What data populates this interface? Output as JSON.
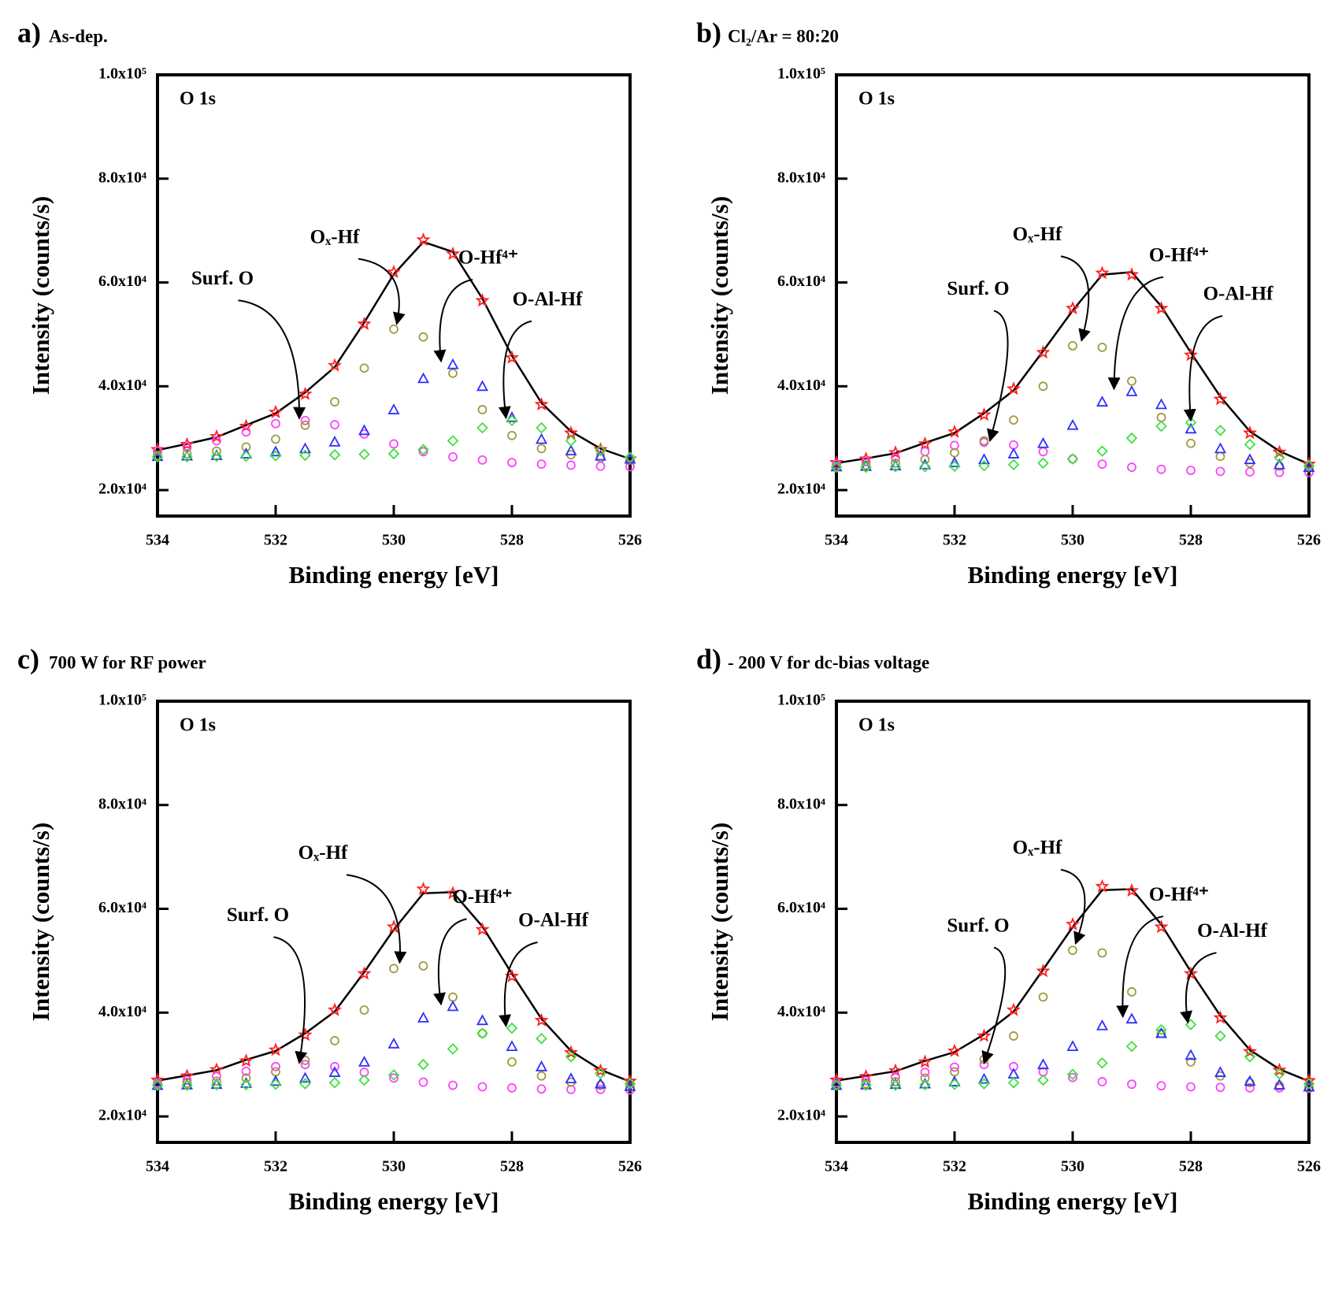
{
  "chart_data": [
    {
      "type": "line",
      "panel_label": "a)",
      "title": "As-dep.",
      "xlabel": "Binding energy [eV]",
      "ylabel": "Intensity (counts/s)",
      "annotations": [
        "O 1s",
        "Surf. O",
        "Oₓ-Hf",
        "O-Hf⁴⁺",
        "O-Al-Hf"
      ],
      "x": [
        534,
        533.5,
        533,
        532.5,
        532,
        531.5,
        531,
        530.5,
        530,
        529.5,
        529,
        528.5,
        528,
        527.5,
        527,
        526.5,
        526
      ],
      "xlim": [
        534,
        526
      ],
      "xticks": [
        534,
        532,
        530,
        528,
        526
      ],
      "ylim": [
        15000,
        100000
      ],
      "yticks": [
        {
          "value": 20000,
          "label": "2.0x10⁴"
        },
        {
          "value": 40000,
          "label": "4.0x10⁴"
        },
        {
          "value": 60000,
          "label": "6.0x10⁴"
        },
        {
          "value": 80000,
          "label": "8.0x10⁴"
        },
        {
          "value": 100000,
          "label": "1.0x10⁵"
        }
      ],
      "series": [
        {
          "color": "#000000",
          "marker": "none",
          "values": [
            27700,
            28900,
            30200,
            32500,
            34800,
            38800,
            43700,
            52300,
            61600,
            67800,
            65900,
            56900,
            45900,
            36800,
            31300,
            28000,
            26000
          ]
        },
        {
          "color": "#ff2020",
          "marker": "star",
          "values": [
            27800,
            28800,
            30300,
            32300,
            35000,
            38500,
            44000,
            52000,
            62000,
            68200,
            65500,
            56500,
            45500,
            36500,
            31000,
            27800,
            26000
          ]
        },
        {
          "color": "#ff40ff",
          "marker": "circle",
          "values": [
            27500,
            28300,
            29500,
            31200,
            32800,
            33400,
            32600,
            30800,
            28900,
            27400,
            26400,
            25800,
            25300,
            25000,
            24800,
            24600,
            24500
          ]
        },
        {
          "color": "#a09a40",
          "marker": "circle",
          "values": [
            26700,
            27000,
            27500,
            28300,
            29800,
            32500,
            37000,
            43500,
            51000,
            49500,
            42500,
            35500,
            30500,
            28000,
            26800,
            26200,
            25800
          ]
        },
        {
          "color": "#3030ff",
          "marker": "triangle",
          "values": [
            26500,
            26600,
            26700,
            27000,
            27400,
            28000,
            29300,
            31500,
            35500,
            41500,
            44200,
            40000,
            34000,
            29800,
            27600,
            26600,
            26000
          ]
        },
        {
          "color": "#40e040",
          "marker": "diamond",
          "values": [
            26400,
            26400,
            26500,
            26500,
            26600,
            26700,
            26800,
            26900,
            27000,
            27800,
            29500,
            32000,
            33400,
            32000,
            29500,
            27600,
            26300
          ]
        }
      ]
    },
    {
      "type": "line",
      "panel_label": "b)",
      "title": "Cl₂/Ar = 80:20",
      "xlabel": "Binding energy [eV]",
      "ylabel": "Intensity (counts/s)",
      "annotations": [
        "O 1s",
        "Surf. O",
        "Oₓ-Hf",
        "O-Hf⁴⁺",
        "O-Al-Hf"
      ],
      "x": [
        534,
        533.5,
        533,
        532.5,
        532,
        531.5,
        531,
        530.5,
        530,
        529.5,
        529,
        528.5,
        528,
        527.5,
        527,
        526.5,
        526
      ],
      "xlim": [
        534,
        526
      ],
      "xticks": [
        534,
        532,
        530,
        528,
        526
      ],
      "ylim": [
        15000,
        100000
      ],
      "yticks": [
        {
          "value": 20000,
          "label": "2.0x10⁴"
        },
        {
          "value": 40000,
          "label": "4.0x10⁴"
        },
        {
          "value": 60000,
          "label": "6.0x10⁴"
        },
        {
          "value": 80000,
          "label": "8.0x10⁴"
        },
        {
          "value": 100000,
          "label": "1.0x10⁵"
        }
      ],
      "series": [
        {
          "color": "#000000",
          "marker": "none",
          "values": [
            25200,
            26100,
            27100,
            29100,
            31000,
            34800,
            39200,
            46800,
            54600,
            61500,
            62000,
            55400,
            46500,
            38000,
            31300,
            27500,
            25000
          ]
        },
        {
          "color": "#ff2020",
          "marker": "star",
          "values": [
            25300,
            26000,
            27200,
            28900,
            31200,
            34500,
            39500,
            46500,
            55000,
            61800,
            61500,
            55000,
            46000,
            37500,
            31000,
            27300,
            25000
          ]
        },
        {
          "color": "#ff40ff",
          "marker": "circle",
          "values": [
            25000,
            25500,
            26200,
            27400,
            28600,
            29200,
            28700,
            27400,
            26000,
            25000,
            24400,
            24000,
            23800,
            23600,
            23500,
            23400,
            23400
          ]
        },
        {
          "color": "#a09a40",
          "marker": "circle",
          "values": [
            24600,
            24800,
            25200,
            25900,
            27200,
            29500,
            33500,
            40000,
            47800,
            47500,
            41000,
            34000,
            29000,
            26500,
            25200,
            24600,
            24300
          ]
        },
        {
          "color": "#3030ff",
          "marker": "triangle",
          "values": [
            24500,
            24600,
            24700,
            24900,
            25300,
            25900,
            27000,
            29000,
            32500,
            37000,
            39000,
            36500,
            31800,
            28000,
            25900,
            24900,
            24400
          ]
        },
        {
          "color": "#40e040",
          "marker": "diamond",
          "values": [
            24400,
            24400,
            24500,
            24500,
            24600,
            24700,
            24900,
            25200,
            26000,
            27500,
            30000,
            32300,
            33000,
            31500,
            28800,
            26300,
            24700
          ]
        }
      ]
    },
    {
      "type": "line",
      "panel_label": "c)",
      "title": "700 W for RF power",
      "xlabel": "Binding energy [eV]",
      "ylabel": "Intensity (counts/s)",
      "annotations": [
        "O 1s",
        "Surf. O",
        "Oₓ-Hf",
        "O-Hf⁴⁺",
        "O-Al-Hf"
      ],
      "x": [
        534,
        533.5,
        533,
        532.5,
        532,
        531.5,
        531,
        530.5,
        530,
        529.5,
        529,
        528.5,
        528,
        527.5,
        527,
        526.5,
        526
      ],
      "xlim": [
        534,
        526
      ],
      "xticks": [
        534,
        532,
        530,
        528,
        526
      ],
      "ylim": [
        15000,
        100000
      ],
      "yticks": [
        {
          "value": 20000,
          "label": "2.0x10⁴"
        },
        {
          "value": 40000,
          "label": "4.0x10⁴"
        },
        {
          "value": 60000,
          "label": "6.0x10⁴"
        },
        {
          "value": 80000,
          "label": "8.0x10⁴"
        },
        {
          "value": 100000,
          "label": "1.0x10⁵"
        }
      ],
      "series": [
        {
          "color": "#000000",
          "marker": "none",
          "values": [
            26900,
            27900,
            28900,
            30900,
            32600,
            36000,
            40200,
            47800,
            56000,
            63000,
            63200,
            56600,
            47500,
            38800,
            32600,
            29000,
            26700
          ]
        },
        {
          "color": "#ff2020",
          "marker": "star",
          "values": [
            27000,
            27800,
            29000,
            30700,
            32800,
            35700,
            40500,
            47500,
            56500,
            63800,
            63000,
            56000,
            47000,
            38500,
            32300,
            28800,
            26800
          ]
        },
        {
          "color": "#ff40ff",
          "marker": "circle",
          "values": [
            26500,
            27000,
            27700,
            28700,
            29600,
            30000,
            29600,
            28500,
            27400,
            26600,
            26000,
            25700,
            25500,
            25300,
            25200,
            25200,
            25100
          ]
        },
        {
          "color": "#a09a40",
          "marker": "circle",
          "values": [
            26200,
            26400,
            26800,
            27400,
            28600,
            30800,
            34600,
            40500,
            48500,
            49000,
            43000,
            36000,
            30500,
            27800,
            26600,
            26000,
            25700
          ]
        },
        {
          "color": "#3030ff",
          "marker": "triangle",
          "values": [
            26000,
            26100,
            26200,
            26400,
            26800,
            27400,
            28500,
            30500,
            34000,
            39000,
            41200,
            38500,
            33500,
            29600,
            27300,
            26300,
            25800
          ]
        },
        {
          "color": "#40e040",
          "marker": "diamond",
          "values": [
            26000,
            26000,
            26100,
            26100,
            26200,
            26300,
            26500,
            27000,
            28000,
            30000,
            33000,
            36000,
            37000,
            35000,
            31500,
            28300,
            26300
          ]
        }
      ]
    },
    {
      "type": "line",
      "panel_label": "d)",
      "title": "- 200 V for dc-bias voltage",
      "xlabel": "Binding energy [eV]",
      "ylabel": "Intensity (counts/s)",
      "annotations": [
        "O 1s",
        "Surf. O",
        "Oₓ-Hf",
        "O-Hf⁴⁺",
        "O-Al-Hf"
      ],
      "x": [
        534,
        533.5,
        533,
        532.5,
        532,
        531.5,
        531,
        530.5,
        530,
        529.5,
        529,
        528.5,
        528,
        527.5,
        527,
        526.5,
        526
      ],
      "xlim": [
        534,
        526
      ],
      "xticks": [
        534,
        532,
        530,
        528,
        526
      ],
      "ylim": [
        15000,
        100000
      ],
      "yticks": [
        {
          "value": 20000,
          "label": "2.0x10⁴"
        },
        {
          "value": 40000,
          "label": "4.0x10⁴"
        },
        {
          "value": 60000,
          "label": "6.0x10⁴"
        },
        {
          "value": 80000,
          "label": "8.0x10⁴"
        },
        {
          "value": 100000,
          "label": "1.0x10⁵"
        }
      ],
      "series": [
        {
          "color": "#000000",
          "marker": "none",
          "values": [
            26900,
            27800,
            28700,
            30700,
            32400,
            35800,
            40200,
            48300,
            56500,
            63600,
            63800,
            57000,
            47900,
            39400,
            32800,
            29100,
            26800
          ]
        },
        {
          "color": "#ff2020",
          "marker": "star",
          "values": [
            27000,
            27700,
            28800,
            30500,
            32600,
            35500,
            40500,
            48000,
            57000,
            64300,
            63500,
            56500,
            47500,
            39000,
            32500,
            28900,
            26900
          ]
        },
        {
          "color": "#ff40ff",
          "marker": "circle",
          "values": [
            26500,
            26900,
            27600,
            28500,
            29500,
            30000,
            29600,
            28600,
            27500,
            26700,
            26200,
            25900,
            25700,
            25600,
            25500,
            25500,
            25400
          ]
        },
        {
          "color": "#a09a40",
          "marker": "circle",
          "values": [
            26100,
            26300,
            26700,
            27400,
            28600,
            31000,
            35500,
            43000,
            52000,
            51500,
            44000,
            36000,
            30500,
            27800,
            26500,
            25900,
            25600
          ]
        },
        {
          "color": "#3030ff",
          "marker": "triangle",
          "values": [
            26000,
            26100,
            26200,
            26300,
            26700,
            27200,
            28200,
            30000,
            33500,
            37500,
            38800,
            36000,
            31800,
            28500,
            26800,
            26100,
            25700
          ]
        },
        {
          "color": "#40e040",
          "marker": "diamond",
          "values": [
            26000,
            26000,
            26000,
            26100,
            26200,
            26300,
            26500,
            27000,
            28100,
            30300,
            33500,
            36700,
            37700,
            35500,
            31500,
            28200,
            26300
          ]
        }
      ]
    }
  ]
}
